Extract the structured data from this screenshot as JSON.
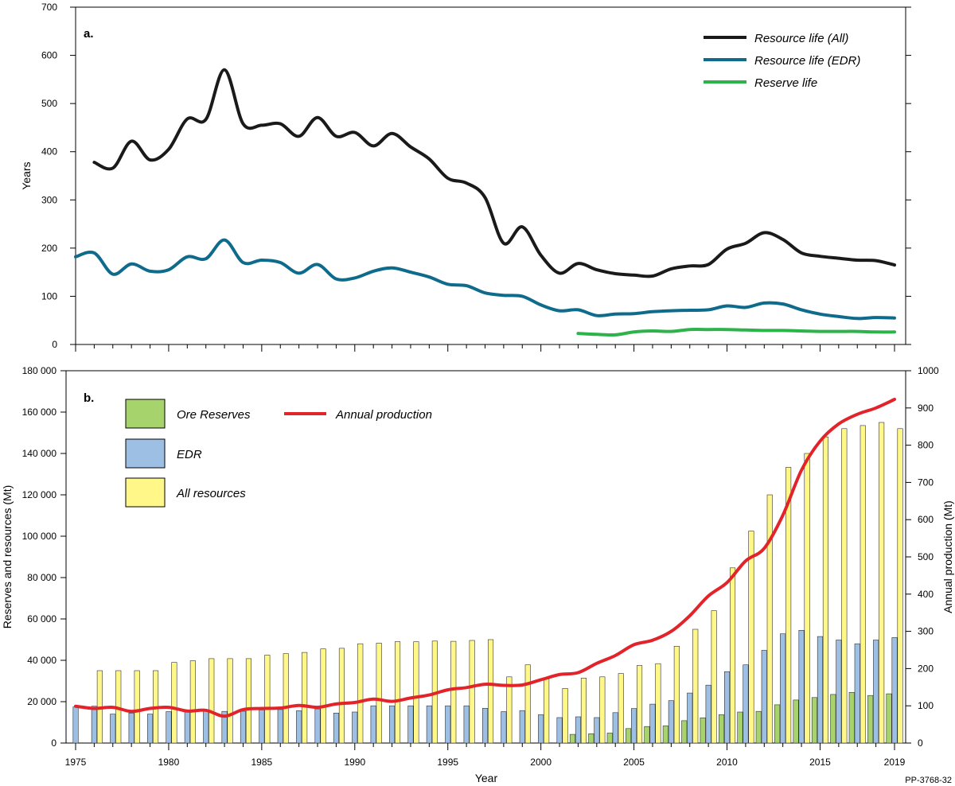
{
  "figure_id": "PP-3768-32",
  "chart_data": [
    {
      "panel": "a.",
      "type": "line",
      "ylabel": "Years",
      "xlabel": "",
      "xlim": [
        1975,
        2019
      ],
      "ylim": [
        0,
        700
      ],
      "yticks": [
        0,
        100,
        200,
        300,
        400,
        500,
        600,
        700
      ],
      "legend_position": "top-right",
      "series": [
        {
          "name": "Resource life (All)",
          "color": "#1a1a1a",
          "x": [
            1976,
            1977,
            1978,
            1979,
            1980,
            1981,
            1982,
            1983,
            1984,
            1985,
            1986,
            1987,
            1988,
            1989,
            1990,
            1991,
            1992,
            1993,
            1994,
            1995,
            1996,
            1997,
            1998,
            1999,
            2000,
            2001,
            2002,
            2003,
            2004,
            2005,
            2006,
            2007,
            2008,
            2009,
            2010,
            2011,
            2012,
            2013,
            2014,
            2015,
            2016,
            2017,
            2018,
            2019
          ],
          "values": [
            378,
            366,
            422,
            383,
            405,
            468,
            467,
            570,
            458,
            455,
            458,
            432,
            471,
            432,
            440,
            412,
            438,
            410,
            385,
            345,
            335,
            305,
            210,
            244,
            185,
            148,
            168,
            155,
            147,
            144,
            142,
            157,
            163,
            166,
            198,
            210,
            232,
            218,
            190,
            183,
            179,
            175,
            174,
            165
          ]
        },
        {
          "name": "Resource life (EDR)",
          "color": "#0e6b8c",
          "x": [
            1975,
            1976,
            1977,
            1978,
            1979,
            1980,
            1981,
            1982,
            1983,
            1984,
            1985,
            1986,
            1987,
            1988,
            1989,
            1990,
            1991,
            1992,
            1993,
            1994,
            1995,
            1996,
            1997,
            1998,
            1999,
            2000,
            2001,
            2002,
            2003,
            2004,
            2005,
            2006,
            2007,
            2008,
            2009,
            2010,
            2011,
            2012,
            2013,
            2014,
            2015,
            2016,
            2017,
            2018,
            2019
          ],
          "values": [
            182,
            190,
            146,
            167,
            152,
            155,
            182,
            178,
            217,
            170,
            175,
            170,
            148,
            166,
            136,
            138,
            152,
            159,
            150,
            140,
            125,
            122,
            107,
            102,
            100,
            82,
            70,
            72,
            60,
            63,
            64,
            68,
            70,
            71,
            72,
            80,
            77,
            86,
            84,
            72,
            63,
            58,
            54,
            56,
            55
          ]
        },
        {
          "name": "Reserve life",
          "color": "#2db34a",
          "x": [
            2002,
            2003,
            2004,
            2005,
            2006,
            2007,
            2008,
            2009,
            2010,
            2011,
            2012,
            2013,
            2014,
            2015,
            2016,
            2017,
            2018,
            2019
          ],
          "values": [
            23,
            21,
            20,
            26,
            28,
            27,
            31,
            31,
            31,
            30,
            29,
            29,
            28,
            27,
            27,
            27,
            26,
            26
          ]
        }
      ]
    },
    {
      "panel": "b.",
      "type": "bar",
      "xlabel": "Year",
      "ylabel": "Reserves and resources (Mt)",
      "ylim": [
        0,
        180000
      ],
      "yticks": [
        "0",
        "20 000",
        "40 000",
        "60 000",
        "80 000",
        "100 000",
        "120 000",
        "140 000",
        "160 000",
        "180 000"
      ],
      "y2label": "Annual production (Mt)",
      "y2lim": [
        0,
        1000
      ],
      "y2ticks": [
        "0",
        "100",
        "200",
        "300",
        "400",
        "500",
        "600",
        "700",
        "800",
        "900",
        "1000"
      ],
      "xticks": [
        "1975",
        "1980",
        "1985",
        "1990",
        "1995",
        "2000",
        "2005",
        "2010",
        "2015",
        "2019"
      ],
      "legend_position": "top-left",
      "categories": [
        1975,
        1976,
        1977,
        1978,
        1979,
        1980,
        1981,
        1982,
        1983,
        1984,
        1985,
        1986,
        1987,
        1988,
        1989,
        1990,
        1991,
        1992,
        1993,
        1994,
        1995,
        1996,
        1997,
        1998,
        1999,
        2000,
        2001,
        2002,
        2003,
        2004,
        2005,
        2006,
        2007,
        2008,
        2009,
        2010,
        2011,
        2012,
        2013,
        2014,
        2015,
        2016,
        2017,
        2018,
        2019
      ],
      "series": [
        {
          "name": "Ore Reserves",
          "color": "#a6d36b",
          "values": [
            null,
            null,
            null,
            null,
            null,
            null,
            null,
            null,
            null,
            null,
            null,
            null,
            null,
            null,
            null,
            null,
            null,
            null,
            null,
            null,
            null,
            null,
            null,
            null,
            null,
            null,
            null,
            4200,
            4500,
            4800,
            7000,
            8000,
            8300,
            10800,
            12200,
            13700,
            15000,
            15300,
            18500,
            20800,
            22000,
            23500,
            24500,
            23000,
            23800
          ]
        },
        {
          "name": "EDR",
          "color": "#9dbfe3",
          "values": [
            17500,
            17800,
            14000,
            14500,
            14000,
            15200,
            15800,
            15500,
            15300,
            15400,
            16000,
            16200,
            15600,
            16500,
            14500,
            15000,
            18000,
            18000,
            18000,
            18000,
            18000,
            18000,
            16800,
            15200,
            15700,
            13700,
            12300,
            12700,
            12300,
            14700,
            16700,
            18800,
            20500,
            24200,
            28000,
            34500,
            37800,
            44800,
            52800,
            54500,
            51500,
            49800,
            48000,
            49800,
            51000
          ]
        },
        {
          "name": "All resources",
          "color": "#fff788",
          "values": [
            null,
            35000,
            35000,
            35000,
            35000,
            39000,
            39800,
            40800,
            40800,
            40800,
            42500,
            43200,
            43800,
            45500,
            45800,
            48000,
            48300,
            49000,
            49000,
            49300,
            49200,
            49600,
            50000,
            32000,
            37800,
            31000,
            26400,
            31400,
            32000,
            33600,
            37500,
            38400,
            46800,
            55000,
            64000,
            84700,
            102500,
            120000,
            133300,
            140000,
            148000,
            152000,
            153500,
            155000,
            152000
          ]
        }
      ],
      "line_series": {
        "name": "Annual production",
        "color": "#e3232a",
        "axis": "right",
        "x": [
          1975,
          1976,
          1977,
          1978,
          1979,
          1980,
          1981,
          1982,
          1983,
          1984,
          1985,
          1986,
          1987,
          1988,
          1989,
          1990,
          1991,
          1992,
          1993,
          1994,
          1995,
          1996,
          1997,
          1998,
          1999,
          2000,
          2001,
          2002,
          2003,
          2004,
          2005,
          2006,
          2007,
          2008,
          2009,
          2010,
          2011,
          2012,
          2013,
          2014,
          2015,
          2016,
          2017,
          2018,
          2019
        ],
        "values": [
          99,
          93,
          96,
          85,
          93,
          96,
          86,
          88,
          72,
          90,
          93,
          94,
          101,
          96,
          105,
          109,
          118,
          112,
          121,
          129,
          143,
          149,
          158,
          155,
          156,
          170,
          184,
          189,
          214,
          235,
          264,
          276,
          300,
          342,
          395,
          431,
          489,
          523,
          612,
          733,
          811,
          857,
          883,
          900,
          923
        ]
      }
    }
  ]
}
